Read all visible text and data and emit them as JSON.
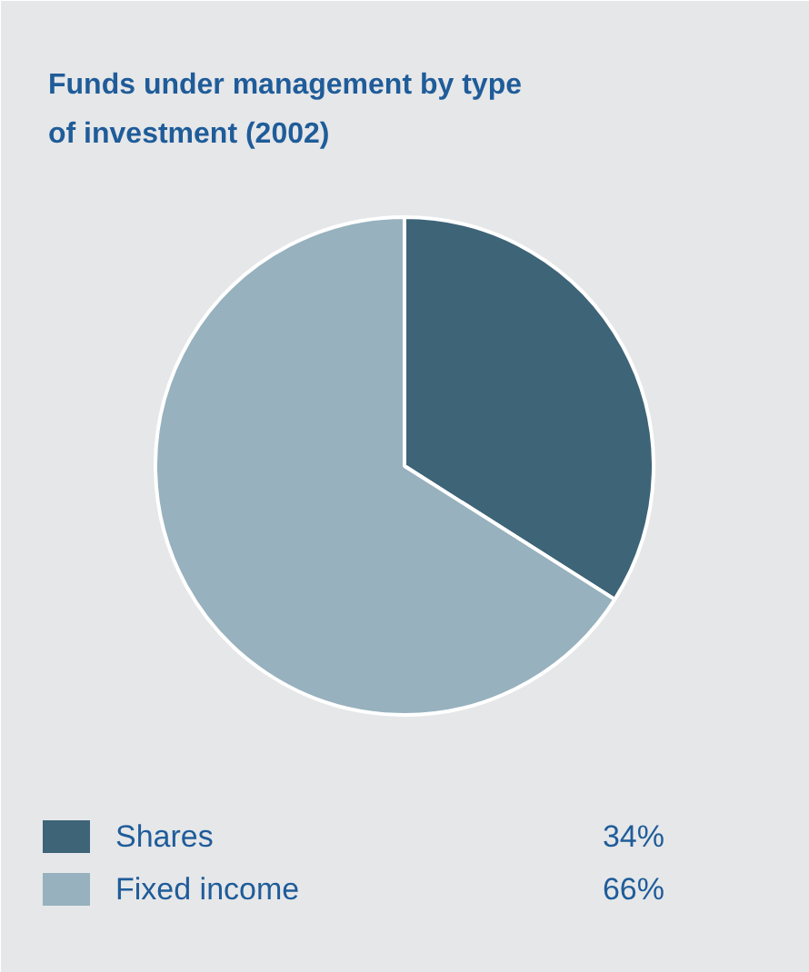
{
  "chart_data": {
    "type": "pie",
    "title": "Funds under management by type\nof investment (2002)",
    "categories": [
      "Shares",
      "Fixed income"
    ],
    "values": [
      34,
      66
    ],
    "colors": [
      "#3e6478",
      "#97b1be"
    ],
    "value_labels": [
      "34%",
      "66%"
    ],
    "legend": "bottom"
  }
}
